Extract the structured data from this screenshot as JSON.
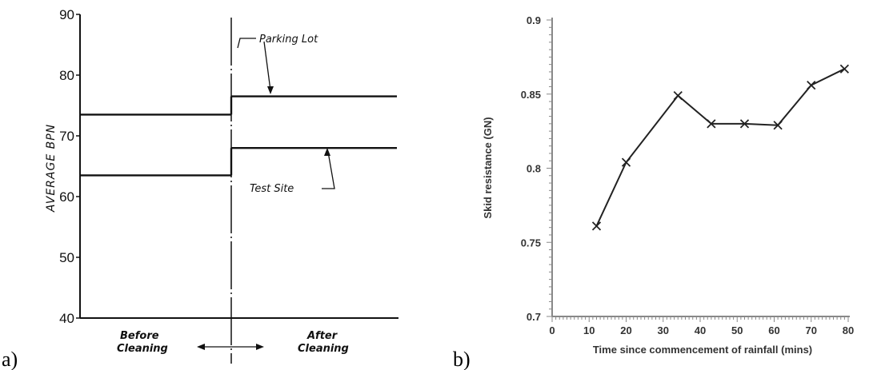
{
  "panels": {
    "a_label": "a)",
    "b_label": "b)"
  },
  "chart_data": [
    {
      "type": "line",
      "ylabel": "AVERAGE BPN",
      "ylim": [
        40,
        90
      ],
      "yticks": [
        "40",
        "50",
        "60",
        "70",
        "80",
        "90"
      ],
      "phases": [
        "Before Cleaning",
        "After Cleaning"
      ],
      "series": [
        {
          "name": "Parking Lot",
          "values": [
            73.5,
            76.5
          ]
        },
        {
          "name": "Test Site",
          "values": [
            63.5,
            68
          ]
        }
      ]
    },
    {
      "type": "line",
      "xlabel": "Time since commencement of rainfall (mins)",
      "ylabel": "Skid resistance (GN)",
      "xlim": [
        0,
        80
      ],
      "ylim": [
        0.7,
        0.9
      ],
      "xticks": [
        "0",
        "10",
        "20",
        "30",
        "40",
        "50",
        "60",
        "70",
        "80"
      ],
      "yticks": [
        "0.7",
        "0.75",
        "0.8",
        "0.85",
        "0.9"
      ],
      "series": [
        {
          "x": [
            12,
            20,
            34,
            43,
            52,
            61,
            70,
            79
          ],
          "y": [
            0.761,
            0.804,
            0.849,
            0.83,
            0.83,
            0.829,
            0.856,
            0.867
          ]
        }
      ]
    }
  ]
}
